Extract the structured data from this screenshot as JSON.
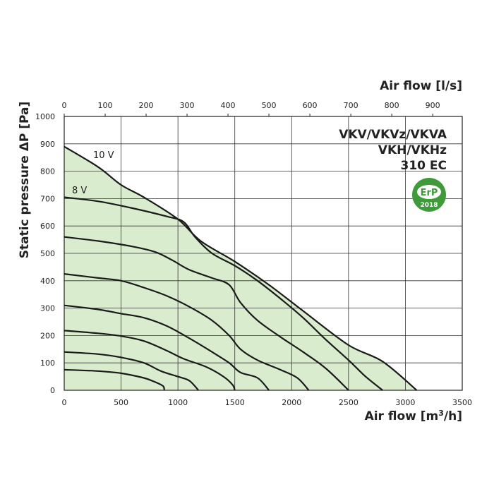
{
  "chart_data": {
    "type": "line",
    "title_lines": [
      "VKV/VKVz/VKVA",
      "VKH/VKHz",
      "310 EC"
    ],
    "xlabel": "Air flow [m",
    "xlabel_sup": "3",
    "xlabel_end": "/h]",
    "x2label": "Air flow [l/s]",
    "ylabel": "Static pressure ΔP [Pa]",
    "xlim": [
      0,
      3500
    ],
    "ylim": [
      0,
      1000
    ],
    "x2lim": [
      0,
      972.2
    ],
    "x_ticks": [
      "0",
      "500",
      "1000",
      "1500",
      "2000",
      "2500",
      "3000",
      "3500"
    ],
    "x2_ticks": [
      "0",
      "100",
      "200",
      "300",
      "400",
      "500",
      "600",
      "700",
      "800",
      "900"
    ],
    "y_ticks": [
      "0",
      "100",
      "200",
      "300",
      "400",
      "500",
      "600",
      "700",
      "800",
      "900",
      "1000"
    ],
    "fill_color": "#d9eccd",
    "line_color": "#1a1a1a",
    "curve_labels": [
      "10 V",
      "8 V"
    ],
    "badge": {
      "top": "ErP",
      "bottom": "2018",
      "color": "#3f9b3a"
    },
    "area_boundary": [
      [
        0,
        890
      ],
      [
        300,
        815
      ],
      [
        500,
        750
      ],
      [
        700,
        705
      ],
      [
        1000,
        625
      ],
      [
        1200,
        545
      ],
      [
        1500,
        470
      ],
      [
        1800,
        385
      ],
      [
        2100,
        290
      ],
      [
        2500,
        165
      ],
      [
        2800,
        105
      ],
      [
        3100,
        0
      ]
    ],
    "series": [
      {
        "points": [
          [
            0,
            890
          ],
          [
            300,
            815
          ],
          [
            500,
            750
          ],
          [
            700,
            705
          ],
          [
            1000,
            625
          ],
          [
            1200,
            545
          ],
          [
            1500,
            470
          ],
          [
            1800,
            385
          ],
          [
            2100,
            290
          ],
          [
            2500,
            165
          ],
          [
            2800,
            105
          ],
          [
            3100,
            0
          ]
        ]
      },
      {
        "points": [
          [
            0,
            705
          ],
          [
            300,
            690
          ],
          [
            600,
            665
          ],
          [
            900,
            635
          ],
          [
            1050,
            615
          ],
          [
            1150,
            560
          ],
          [
            1300,
            500
          ],
          [
            1500,
            455
          ],
          [
            1700,
            400
          ],
          [
            1900,
            335
          ],
          [
            2100,
            265
          ],
          [
            2300,
            185
          ],
          [
            2500,
            110
          ],
          [
            2650,
            50
          ],
          [
            2800,
            0
          ]
        ]
      },
      {
        "points": [
          [
            0,
            560
          ],
          [
            300,
            545
          ],
          [
            600,
            525
          ],
          [
            800,
            505
          ],
          [
            950,
            475
          ],
          [
            1100,
            440
          ],
          [
            1300,
            410
          ],
          [
            1450,
            385
          ],
          [
            1550,
            320
          ],
          [
            1700,
            255
          ],
          [
            1900,
            195
          ],
          [
            2100,
            140
          ],
          [
            2300,
            80
          ],
          [
            2500,
            0
          ]
        ]
      },
      {
        "points": [
          [
            0,
            425
          ],
          [
            300,
            410
          ],
          [
            500,
            400
          ],
          [
            700,
            375
          ],
          [
            900,
            345
          ],
          [
            1100,
            305
          ],
          [
            1300,
            255
          ],
          [
            1450,
            200
          ],
          [
            1550,
            150
          ],
          [
            1700,
            110
          ],
          [
            1900,
            75
          ],
          [
            2050,
            45
          ],
          [
            2150,
            0
          ]
        ]
      },
      {
        "points": [
          [
            0,
            310
          ],
          [
            300,
            295
          ],
          [
            500,
            280
          ],
          [
            700,
            265
          ],
          [
            900,
            235
          ],
          [
            1100,
            190
          ],
          [
            1300,
            140
          ],
          [
            1450,
            100
          ],
          [
            1550,
            65
          ],
          [
            1700,
            45
          ],
          [
            1800,
            0
          ]
        ]
      },
      {
        "points": [
          [
            0,
            218
          ],
          [
            300,
            208
          ],
          [
            500,
            198
          ],
          [
            700,
            180
          ],
          [
            900,
            145
          ],
          [
            1050,
            115
          ],
          [
            1250,
            85
          ],
          [
            1400,
            50
          ],
          [
            1480,
            20
          ],
          [
            1500,
            0
          ]
        ]
      },
      {
        "points": [
          [
            0,
            140
          ],
          [
            300,
            132
          ],
          [
            500,
            120
          ],
          [
            700,
            100
          ],
          [
            850,
            70
          ],
          [
            1000,
            50
          ],
          [
            1100,
            35
          ],
          [
            1180,
            0
          ]
        ]
      },
      {
        "points": [
          [
            0,
            75
          ],
          [
            300,
            70
          ],
          [
            500,
            62
          ],
          [
            700,
            45
          ],
          [
            800,
            30
          ],
          [
            870,
            15
          ],
          [
            880,
            0
          ]
        ]
      }
    ]
  }
}
